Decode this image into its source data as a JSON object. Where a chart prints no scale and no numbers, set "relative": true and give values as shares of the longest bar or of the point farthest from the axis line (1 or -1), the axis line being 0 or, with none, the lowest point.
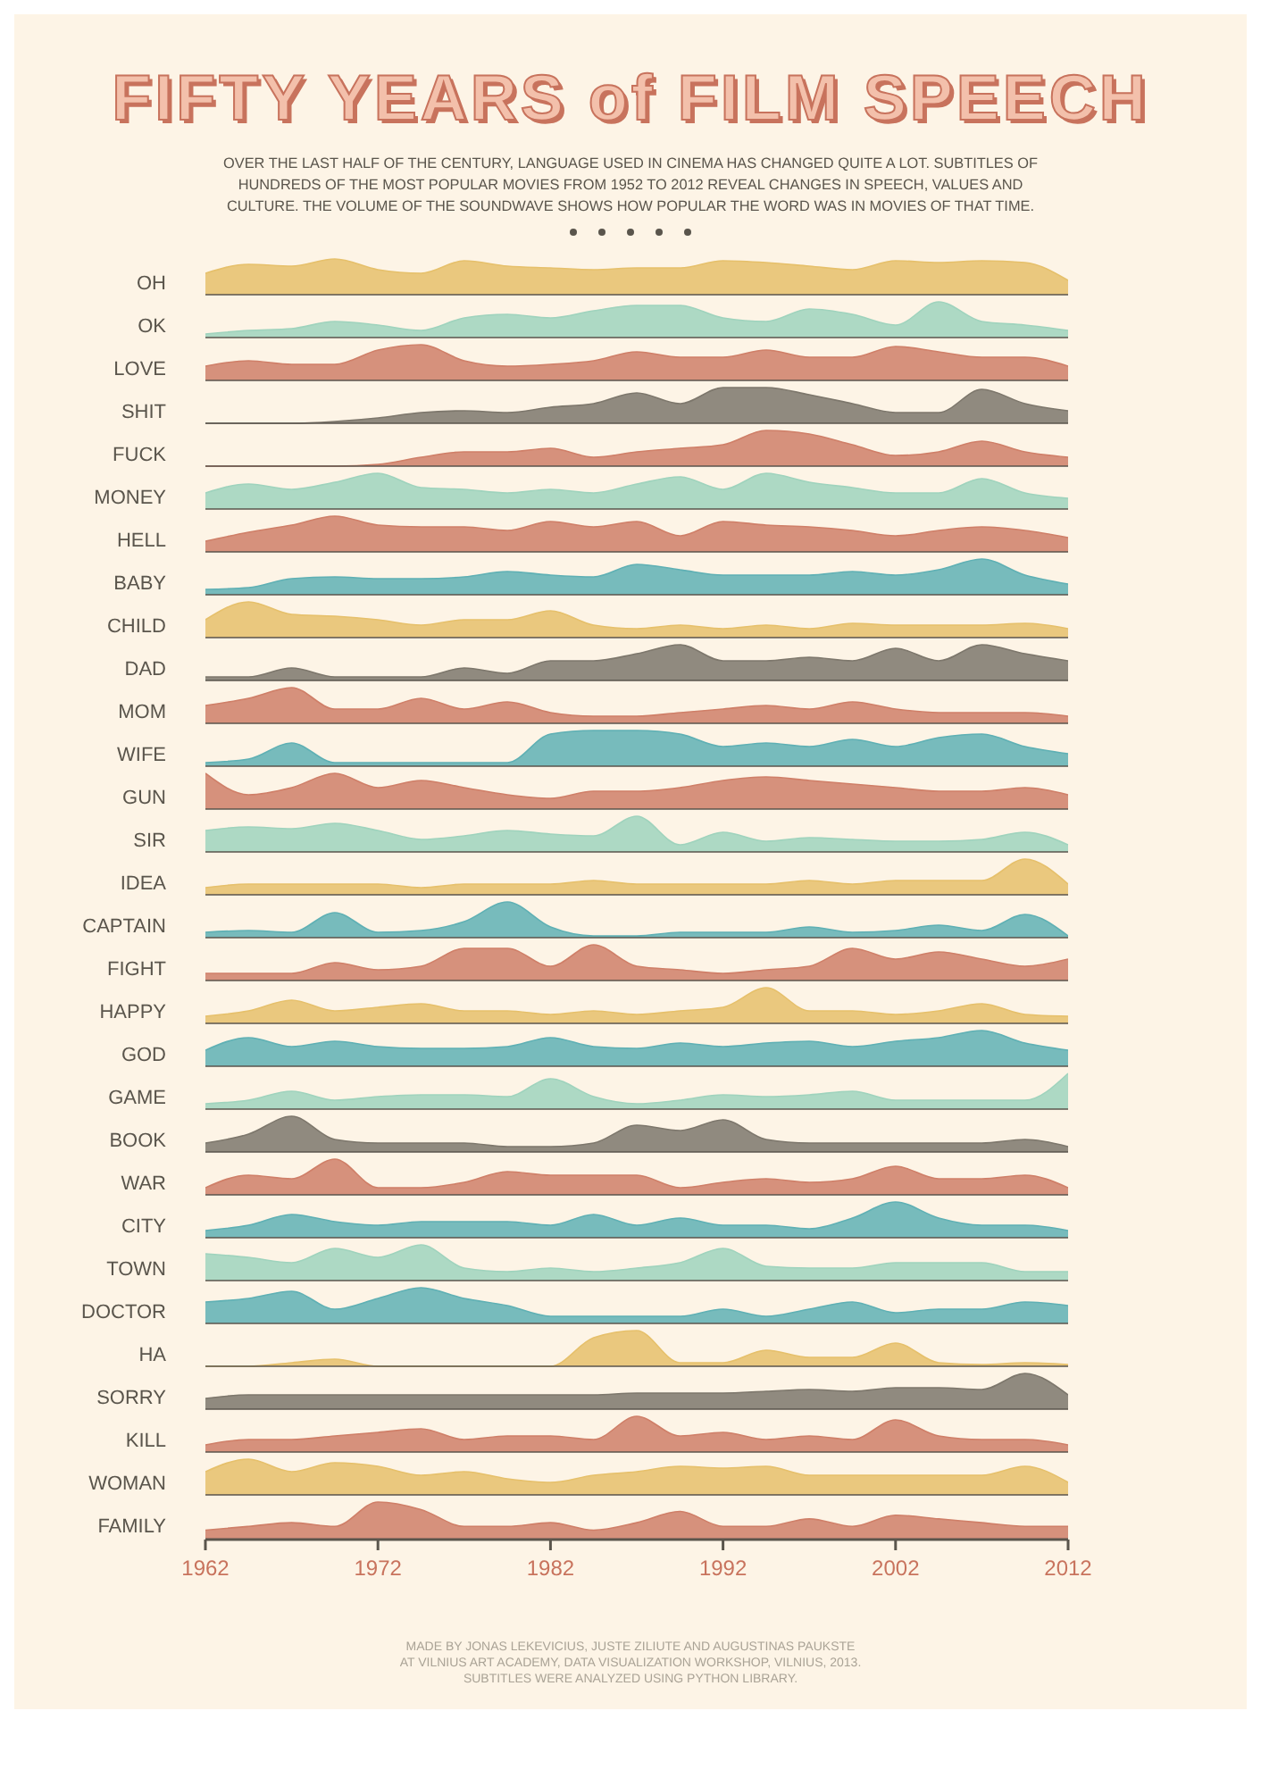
{
  "chart_data": [
    {
      "type": "area",
      "title": "FIFTY YEARS of FILM SPEECH",
      "subtitle": "OVER THE LAST HALF OF THE CENTURY, LANGUAGE USED IN CINEMA HAS CHANGED QUITE A LOT.  SUBTITLES OF HUNDREDS OF THE MOST POPULAR MOVIES FROM 1952 TO 2012 REVEAL CHANGES IN SPEECH, VALUES AND CULTURE. THE VOLUME OF THE SOUNDWAVE SHOWS HOW POPULAR THE WORD WAS IN MOVIES OF THAT TIME.",
      "relative": true,
      "tick_labels": false,
      "xlim": [
        1962,
        2012
      ],
      "x": [
        1962,
        1964.5,
        1967,
        1969.5,
        1972,
        1974.5,
        1977,
        1979.5,
        1982,
        1984.5,
        1987,
        1989.5,
        1992,
        1994.5,
        1997,
        1999.5,
        2002,
        2004.5,
        2007,
        2009.5,
        2012
      ],
      "series": [
        {
          "name": "OH",
          "color": "#e6c06b",
          "values": [
            0.6,
            0.85,
            0.8,
            1,
            0.7,
            0.6,
            0.95,
            0.8,
            0.75,
            0.7,
            0.75,
            0.75,
            0.95,
            0.9,
            0.8,
            0.7,
            0.95,
            0.9,
            0.95,
            0.9,
            0.4
          ]
        }
      ]
    },
    {
      "type": "area",
      "relative": true,
      "tick_labels": false,
      "xlim": [
        1962,
        2012
      ],
      "x": [
        1962,
        1964.5,
        1967,
        1969.5,
        1972,
        1974.5,
        1977,
        1979.5,
        1982,
        1984.5,
        1987,
        1989.5,
        1992,
        1994.5,
        1997,
        1999.5,
        2002,
        2004.5,
        2007,
        2009.5,
        2012
      ],
      "series": [
        {
          "name": "OK",
          "color": "#9fd3bd",
          "values": [
            0.1,
            0.2,
            0.25,
            0.45,
            0.35,
            0.2,
            0.55,
            0.65,
            0.55,
            0.75,
            0.9,
            0.9,
            0.55,
            0.45,
            0.8,
            0.65,
            0.35,
            1,
            0.45,
            0.35,
            0.2
          ]
        }
      ]
    },
    {
      "type": "area",
      "relative": true,
      "tick_labels": false,
      "xlim": [
        1962,
        2012
      ],
      "x": [
        1962,
        1964.5,
        1967,
        1969.5,
        1972,
        1974.5,
        1977,
        1979.5,
        1982,
        1984.5,
        1987,
        1989.5,
        1992,
        1994.5,
        1997,
        1999.5,
        2002,
        2004.5,
        2007,
        2009.5,
        2012
      ],
      "series": [
        {
          "name": "LOVE",
          "color": "#cf7f68",
          "values": [
            0.4,
            0.55,
            0.45,
            0.45,
            0.85,
            1,
            0.55,
            0.4,
            0.45,
            0.55,
            0.8,
            0.65,
            0.65,
            0.85,
            0.65,
            0.65,
            0.95,
            0.8,
            0.65,
            0.65,
            0.4
          ]
        }
      ]
    },
    {
      "type": "area",
      "relative": true,
      "tick_labels": false,
      "xlim": [
        1962,
        2012
      ],
      "x": [
        1962,
        1964.5,
        1967,
        1969.5,
        1972,
        1974.5,
        1977,
        1979.5,
        1982,
        1984.5,
        1987,
        1989.5,
        1992,
        1994.5,
        1997,
        1999.5,
        2002,
        2004.5,
        2007,
        2009.5,
        2012
      ],
      "series": [
        {
          "name": "SHIT",
          "color": "#7d776c",
          "values": [
            0,
            0,
            0,
            0.05,
            0.15,
            0.3,
            0.35,
            0.3,
            0.45,
            0.55,
            0.85,
            0.55,
            1,
            1,
            0.8,
            0.55,
            0.3,
            0.3,
            0.95,
            0.55,
            0.35
          ]
        }
      ]
    },
    {
      "type": "area",
      "relative": true,
      "tick_labels": false,
      "xlim": [
        1962,
        2012
      ],
      "x": [
        1962,
        1964.5,
        1967,
        1969.5,
        1972,
        1974.5,
        1977,
        1979.5,
        1982,
        1984.5,
        1987,
        1989.5,
        1992,
        1994.5,
        1997,
        1999.5,
        2002,
        2004.5,
        2007,
        2009.5,
        2012
      ],
      "series": [
        {
          "name": "FUCK",
          "color": "#cf7f68",
          "values": [
            0,
            0,
            0,
            0,
            0.05,
            0.25,
            0.4,
            0.4,
            0.5,
            0.25,
            0.4,
            0.5,
            0.6,
            1,
            0.9,
            0.6,
            0.3,
            0.4,
            0.7,
            0.4,
            0.25
          ]
        }
      ]
    },
    {
      "type": "area",
      "relative": true,
      "tick_labels": false,
      "xlim": [
        1962,
        2012
      ],
      "x": [
        1962,
        1964.5,
        1967,
        1969.5,
        1972,
        1974.5,
        1977,
        1979.5,
        1982,
        1984.5,
        1987,
        1989.5,
        1992,
        1994.5,
        1997,
        1999.5,
        2002,
        2004.5,
        2007,
        2009.5,
        2012
      ],
      "series": [
        {
          "name": "MONEY",
          "color": "#9fd3bd",
          "values": [
            0.45,
            0.7,
            0.55,
            0.75,
            1,
            0.6,
            0.55,
            0.45,
            0.55,
            0.45,
            0.7,
            0.9,
            0.55,
            1,
            0.75,
            0.6,
            0.45,
            0.45,
            0.85,
            0.45,
            0.3
          ]
        }
      ]
    },
    {
      "type": "area",
      "relative": true,
      "tick_labels": false,
      "xlim": [
        1962,
        2012
      ],
      "x": [
        1962,
        1964.5,
        1967,
        1969.5,
        1972,
        1974.5,
        1977,
        1979.5,
        1982,
        1984.5,
        1987,
        1989.5,
        1992,
        1994.5,
        1997,
        1999.5,
        2002,
        2004.5,
        2007,
        2009.5,
        2012
      ],
      "series": [
        {
          "name": "HELL",
          "color": "#cf7f68",
          "values": [
            0.3,
            0.55,
            0.75,
            1,
            0.75,
            0.7,
            0.7,
            0.6,
            0.85,
            0.7,
            0.85,
            0.45,
            0.85,
            0.75,
            0.7,
            0.6,
            0.45,
            0.6,
            0.7,
            0.6,
            0.4
          ]
        }
      ]
    },
    {
      "type": "area",
      "relative": true,
      "tick_labels": false,
      "xlim": [
        1962,
        2012
      ],
      "x": [
        1962,
        1964.5,
        1967,
        1969.5,
        1972,
        1974.5,
        1977,
        1979.5,
        1982,
        1984.5,
        1987,
        1989.5,
        1992,
        1994.5,
        1997,
        1999.5,
        2002,
        2004.5,
        2007,
        2009.5,
        2012
      ],
      "series": [
        {
          "name": "BABY",
          "color": "#5fb0b4",
          "values": [
            0.15,
            0.2,
            0.45,
            0.5,
            0.45,
            0.45,
            0.5,
            0.65,
            0.55,
            0.5,
            0.85,
            0.7,
            0.55,
            0.55,
            0.55,
            0.65,
            0.55,
            0.7,
            1,
            0.55,
            0.3
          ]
        }
      ]
    },
    {
      "type": "area",
      "relative": true,
      "tick_labels": false,
      "xlim": [
        1962,
        2012
      ],
      "x": [
        1962,
        1964.5,
        1967,
        1969.5,
        1972,
        1974.5,
        1977,
        1979.5,
        1982,
        1984.5,
        1987,
        1989.5,
        1992,
        1994.5,
        1997,
        1999.5,
        2002,
        2004.5,
        2007,
        2009.5,
        2012
      ],
      "series": [
        {
          "name": "CHILD",
          "color": "#e6c06b",
          "values": [
            0.5,
            1,
            0.65,
            0.6,
            0.5,
            0.35,
            0.5,
            0.5,
            0.75,
            0.35,
            0.25,
            0.35,
            0.25,
            0.35,
            0.25,
            0.4,
            0.35,
            0.35,
            0.35,
            0.4,
            0.25
          ]
        }
      ]
    },
    {
      "type": "area",
      "relative": true,
      "tick_labels": false,
      "xlim": [
        1962,
        2012
      ],
      "x": [
        1962,
        1964.5,
        1967,
        1969.5,
        1972,
        1974.5,
        1977,
        1979.5,
        1982,
        1984.5,
        1987,
        1989.5,
        1992,
        1994.5,
        1997,
        1999.5,
        2002,
        2004.5,
        2007,
        2009.5,
        2012
      ],
      "series": [
        {
          "name": "DAD",
          "color": "#7d776c",
          "values": [
            0.1,
            0.1,
            0.35,
            0.1,
            0.1,
            0.1,
            0.35,
            0.2,
            0.55,
            0.55,
            0.75,
            1,
            0.55,
            0.55,
            0.65,
            0.55,
            0.9,
            0.55,
            1,
            0.75,
            0.55
          ]
        }
      ]
    },
    {
      "type": "area",
      "relative": true,
      "tick_labels": false,
      "xlim": [
        1962,
        2012
      ],
      "x": [
        1962,
        1964.5,
        1967,
        1969.5,
        1972,
        1974.5,
        1977,
        1979.5,
        1982,
        1984.5,
        1987,
        1989.5,
        1992,
        1994.5,
        1997,
        1999.5,
        2002,
        2004.5,
        2007,
        2009.5,
        2012
      ],
      "series": [
        {
          "name": "MOM",
          "color": "#cf7f68",
          "values": [
            0.5,
            0.7,
            1,
            0.4,
            0.4,
            0.7,
            0.4,
            0.6,
            0.3,
            0.2,
            0.2,
            0.3,
            0.4,
            0.5,
            0.4,
            0.6,
            0.4,
            0.3,
            0.3,
            0.3,
            0.2
          ]
        }
      ]
    },
    {
      "type": "area",
      "relative": true,
      "tick_labels": false,
      "xlim": [
        1962,
        2012
      ],
      "x": [
        1962,
        1964.5,
        1967,
        1969.5,
        1972,
        1974.5,
        1977,
        1979.5,
        1982,
        1984.5,
        1987,
        1989.5,
        1992,
        1994.5,
        1997,
        1999.5,
        2002,
        2004.5,
        2007,
        2009.5,
        2012
      ],
      "series": [
        {
          "name": "WIFE",
          "color": "#5fb0b4",
          "values": [
            0.1,
            0.2,
            0.65,
            0.1,
            0.1,
            0.1,
            0.1,
            0.1,
            0.9,
            1,
            1,
            0.9,
            0.55,
            0.65,
            0.55,
            0.75,
            0.55,
            0.8,
            0.9,
            0.55,
            0.35
          ]
        }
      ]
    },
    {
      "type": "area",
      "relative": true,
      "tick_labels": false,
      "xlim": [
        1962,
        2012
      ],
      "x": [
        1962,
        1964.5,
        1967,
        1969.5,
        1972,
        1974.5,
        1977,
        1979.5,
        1982,
        1984.5,
        1987,
        1989.5,
        1992,
        1994.5,
        1997,
        1999.5,
        2002,
        2004.5,
        2007,
        2009.5,
        2012
      ],
      "series": [
        {
          "name": "GUN",
          "color": "#cf7f68",
          "values": [
            1,
            0.4,
            0.6,
            1,
            0.6,
            0.8,
            0.6,
            0.4,
            0.3,
            0.5,
            0.5,
            0.6,
            0.8,
            0.9,
            0.8,
            0.7,
            0.6,
            0.5,
            0.5,
            0.6,
            0.4
          ]
        }
      ]
    },
    {
      "type": "area",
      "relative": true,
      "tick_labels": false,
      "xlim": [
        1962,
        2012
      ],
      "x": [
        1962,
        1964.5,
        1967,
        1969.5,
        1972,
        1974.5,
        1977,
        1979.5,
        1982,
        1984.5,
        1987,
        1989.5,
        1992,
        1994.5,
        1997,
        1999.5,
        2002,
        2004.5,
        2007,
        2009.5,
        2012
      ],
      "series": [
        {
          "name": "SIR",
          "color": "#9fd3bd",
          "values": [
            0.6,
            0.7,
            0.65,
            0.8,
            0.6,
            0.35,
            0.45,
            0.6,
            0.5,
            0.45,
            1,
            0.2,
            0.55,
            0.3,
            0.4,
            0.35,
            0.3,
            0.3,
            0.35,
            0.55,
            0.2
          ]
        }
      ]
    },
    {
      "type": "area",
      "relative": true,
      "tick_labels": false,
      "xlim": [
        1962,
        2012
      ],
      "x": [
        1962,
        1964.5,
        1967,
        1969.5,
        1972,
        1974.5,
        1977,
        1979.5,
        1982,
        1984.5,
        1987,
        1989.5,
        1992,
        1994.5,
        1997,
        1999.5,
        2002,
        2004.5,
        2007,
        2009.5,
        2012
      ],
      "series": [
        {
          "name": "IDEA",
          "color": "#e6c06b",
          "values": [
            0.2,
            0.3,
            0.3,
            0.3,
            0.3,
            0.2,
            0.3,
            0.3,
            0.3,
            0.4,
            0.3,
            0.3,
            0.3,
            0.3,
            0.4,
            0.3,
            0.4,
            0.4,
            0.4,
            1,
            0.3
          ]
        }
      ]
    },
    {
      "type": "area",
      "relative": true,
      "tick_labels": false,
      "xlim": [
        1962,
        2012
      ],
      "x": [
        1962,
        1964.5,
        1967,
        1969.5,
        1972,
        1974.5,
        1977,
        1979.5,
        1982,
        1984.5,
        1987,
        1989.5,
        1992,
        1994.5,
        1997,
        1999.5,
        2002,
        2004.5,
        2007,
        2009.5,
        2012
      ],
      "series": [
        {
          "name": "CAPTAIN",
          "color": "#5fb0b4",
          "values": [
            0.15,
            0.2,
            0.15,
            0.7,
            0.15,
            0.2,
            0.45,
            1,
            0.3,
            0.05,
            0.05,
            0.15,
            0.15,
            0.15,
            0.3,
            0.15,
            0.2,
            0.35,
            0.2,
            0.65,
            0.05
          ]
        }
      ]
    },
    {
      "type": "area",
      "relative": true,
      "tick_labels": false,
      "xlim": [
        1962,
        2012
      ],
      "x": [
        1962,
        1964.5,
        1967,
        1969.5,
        1972,
        1974.5,
        1977,
        1979.5,
        1982,
        1984.5,
        1987,
        1989.5,
        1992,
        1994.5,
        1997,
        1999.5,
        2002,
        2004.5,
        2007,
        2009.5,
        2012
      ],
      "series": [
        {
          "name": "FIGHT",
          "color": "#cf7f68",
          "values": [
            0.2,
            0.2,
            0.2,
            0.5,
            0.3,
            0.4,
            0.9,
            0.9,
            0.4,
            1,
            0.4,
            0.3,
            0.2,
            0.3,
            0.4,
            0.9,
            0.6,
            0.8,
            0.6,
            0.4,
            0.6
          ]
        }
      ]
    },
    {
      "type": "area",
      "relative": true,
      "tick_labels": false,
      "xlim": [
        1962,
        2012
      ],
      "x": [
        1962,
        1964.5,
        1967,
        1969.5,
        1972,
        1974.5,
        1977,
        1979.5,
        1982,
        1984.5,
        1987,
        1989.5,
        1992,
        1994.5,
        1997,
        1999.5,
        2002,
        2004.5,
        2007,
        2009.5,
        2012
      ],
      "series": [
        {
          "name": "HAPPY",
          "color": "#e6c06b",
          "values": [
            0.2,
            0.35,
            0.65,
            0.35,
            0.45,
            0.55,
            0.35,
            0.35,
            0.25,
            0.35,
            0.25,
            0.35,
            0.45,
            1,
            0.35,
            0.35,
            0.25,
            0.35,
            0.55,
            0.25,
            0.2
          ]
        }
      ]
    },
    {
      "type": "area",
      "relative": true,
      "tick_labels": false,
      "xlim": [
        1962,
        2012
      ],
      "x": [
        1962,
        1964.5,
        1967,
        1969.5,
        1972,
        1974.5,
        1977,
        1979.5,
        1982,
        1984.5,
        1987,
        1989.5,
        1992,
        1994.5,
        1997,
        1999.5,
        2002,
        2004.5,
        2007,
        2009.5,
        2012
      ],
      "series": [
        {
          "name": "GOD",
          "color": "#5fb0b4",
          "values": [
            0.45,
            0.8,
            0.55,
            0.7,
            0.55,
            0.5,
            0.5,
            0.55,
            0.8,
            0.55,
            0.5,
            0.65,
            0.55,
            0.65,
            0.7,
            0.55,
            0.7,
            0.8,
            1,
            0.65,
            0.45
          ]
        }
      ]
    },
    {
      "type": "area",
      "relative": true,
      "tick_labels": false,
      "xlim": [
        1962,
        2012
      ],
      "x": [
        1962,
        1964.5,
        1967,
        1969.5,
        1972,
        1974.5,
        1977,
        1979.5,
        1982,
        1984.5,
        1987,
        1989.5,
        1992,
        1994.5,
        1997,
        1999.5,
        2002,
        2004.5,
        2007,
        2009.5,
        2012
      ],
      "series": [
        {
          "name": "GAME",
          "color": "#9fd3bd",
          "values": [
            0.15,
            0.25,
            0.5,
            0.25,
            0.35,
            0.4,
            0.4,
            0.35,
            0.85,
            0.35,
            0.15,
            0.25,
            0.4,
            0.35,
            0.4,
            0.5,
            0.25,
            0.25,
            0.25,
            0.25,
            1
          ]
        }
      ]
    },
    {
      "type": "area",
      "relative": true,
      "tick_labels": false,
      "xlim": [
        1962,
        2012
      ],
      "x": [
        1962,
        1964.5,
        1967,
        1969.5,
        1972,
        1974.5,
        1977,
        1979.5,
        1982,
        1984.5,
        1987,
        1989.5,
        1992,
        1994.5,
        1997,
        1999.5,
        2002,
        2004.5,
        2007,
        2009.5,
        2012
      ],
      "series": [
        {
          "name": "BOOK",
          "color": "#7d776c",
          "values": [
            0.25,
            0.5,
            1,
            0.35,
            0.25,
            0.25,
            0.25,
            0.15,
            0.15,
            0.25,
            0.75,
            0.6,
            0.9,
            0.35,
            0.25,
            0.25,
            0.25,
            0.25,
            0.25,
            0.35,
            0.15
          ]
        }
      ]
    },
    {
      "type": "area",
      "relative": true,
      "tick_labels": false,
      "xlim": [
        1962,
        2012
      ],
      "x": [
        1962,
        1964.5,
        1967,
        1969.5,
        1972,
        1974.5,
        1977,
        1979.5,
        1982,
        1984.5,
        1987,
        1989.5,
        1992,
        1994.5,
        1997,
        1999.5,
        2002,
        2004.5,
        2007,
        2009.5,
        2012
      ],
      "series": [
        {
          "name": "WAR",
          "color": "#cf7f68",
          "values": [
            0.2,
            0.55,
            0.45,
            1,
            0.2,
            0.2,
            0.35,
            0.65,
            0.55,
            0.55,
            0.55,
            0.2,
            0.35,
            0.45,
            0.35,
            0.45,
            0.8,
            0.45,
            0.45,
            0.55,
            0.2
          ]
        }
      ]
    },
    {
      "type": "area",
      "relative": true,
      "tick_labels": false,
      "xlim": [
        1962,
        2012
      ],
      "x": [
        1962,
        1964.5,
        1967,
        1969.5,
        1972,
        1974.5,
        1977,
        1979.5,
        1982,
        1984.5,
        1987,
        1989.5,
        1992,
        1994.5,
        1997,
        1999.5,
        2002,
        2004.5,
        2007,
        2009.5,
        2012
      ],
      "series": [
        {
          "name": "CITY",
          "color": "#5fb0b4",
          "values": [
            0.2,
            0.35,
            0.65,
            0.45,
            0.35,
            0.45,
            0.45,
            0.45,
            0.35,
            0.65,
            0.35,
            0.55,
            0.35,
            0.35,
            0.25,
            0.55,
            1,
            0.55,
            0.35,
            0.35,
            0.2
          ]
        }
      ]
    },
    {
      "type": "area",
      "relative": true,
      "tick_labels": false,
      "xlim": [
        1962,
        2012
      ],
      "x": [
        1962,
        1964.5,
        1967,
        1969.5,
        1972,
        1974.5,
        1977,
        1979.5,
        1982,
        1984.5,
        1987,
        1989.5,
        1992,
        1994.5,
        1997,
        1999.5,
        2002,
        2004.5,
        2007,
        2009.5,
        2012
      ],
      "series": [
        {
          "name": "TOWN",
          "color": "#9fd3bd",
          "values": [
            0.75,
            0.65,
            0.5,
            0.9,
            0.65,
            1,
            0.35,
            0.25,
            0.35,
            0.25,
            0.35,
            0.5,
            0.9,
            0.4,
            0.35,
            0.35,
            0.5,
            0.5,
            0.5,
            0.25,
            0.25
          ]
        }
      ]
    },
    {
      "type": "area",
      "relative": true,
      "tick_labels": false,
      "xlim": [
        1962,
        2012
      ],
      "x": [
        1962,
        1964.5,
        1967,
        1969.5,
        1972,
        1974.5,
        1977,
        1979.5,
        1982,
        1984.5,
        1987,
        1989.5,
        1992,
        1994.5,
        1997,
        1999.5,
        2002,
        2004.5,
        2007,
        2009.5,
        2012
      ],
      "series": [
        {
          "name": "DOCTOR",
          "color": "#5fb0b4",
          "values": [
            0.6,
            0.7,
            0.9,
            0.4,
            0.7,
            1,
            0.7,
            0.5,
            0.2,
            0.2,
            0.2,
            0.2,
            0.4,
            0.2,
            0.4,
            0.6,
            0.3,
            0.4,
            0.4,
            0.6,
            0.5
          ]
        }
      ]
    },
    {
      "type": "area",
      "relative": true,
      "tick_labels": false,
      "xlim": [
        1962,
        2012
      ],
      "x": [
        1962,
        1964.5,
        1967,
        1969.5,
        1972,
        1974.5,
        1977,
        1979.5,
        1982,
        1984.5,
        1987,
        1989.5,
        1992,
        1994.5,
        1997,
        1999.5,
        2002,
        2004.5,
        2007,
        2009.5,
        2012
      ],
      "series": [
        {
          "name": "HA",
          "color": "#e6c06b",
          "values": [
            0,
            0,
            0.1,
            0.2,
            0,
            0,
            0,
            0,
            0,
            0.8,
            1,
            0.1,
            0.1,
            0.45,
            0.25,
            0.25,
            0.65,
            0.1,
            0.05,
            0.1,
            0.05
          ]
        }
      ]
    },
    {
      "type": "area",
      "relative": true,
      "tick_labels": false,
      "xlim": [
        1962,
        2012
      ],
      "x": [
        1962,
        1964.5,
        1967,
        1969.5,
        1972,
        1974.5,
        1977,
        1979.5,
        1982,
        1984.5,
        1987,
        1989.5,
        1992,
        1994.5,
        1997,
        1999.5,
        2002,
        2004.5,
        2007,
        2009.5,
        2012
      ],
      "series": [
        {
          "name": "SORRY",
          "color": "#7d776c",
          "values": [
            0.3,
            0.4,
            0.4,
            0.4,
            0.4,
            0.4,
            0.4,
            0.4,
            0.4,
            0.4,
            0.45,
            0.45,
            0.45,
            0.5,
            0.55,
            0.5,
            0.6,
            0.6,
            0.55,
            1,
            0.4
          ]
        }
      ]
    },
    {
      "type": "area",
      "relative": true,
      "tick_labels": false,
      "xlim": [
        1962,
        2012
      ],
      "x": [
        1962,
        1964.5,
        1967,
        1969.5,
        1972,
        1974.5,
        1977,
        1979.5,
        1982,
        1984.5,
        1987,
        1989.5,
        1992,
        1994.5,
        1997,
        1999.5,
        2002,
        2004.5,
        2007,
        2009.5,
        2012
      ],
      "series": [
        {
          "name": "KILL",
          "color": "#cf7f68",
          "values": [
            0.2,
            0.35,
            0.35,
            0.45,
            0.55,
            0.65,
            0.35,
            0.45,
            0.45,
            0.35,
            1,
            0.45,
            0.55,
            0.35,
            0.45,
            0.35,
            0.9,
            0.45,
            0.35,
            0.35,
            0.2
          ]
        }
      ]
    },
    {
      "type": "area",
      "relative": true,
      "tick_labels": false,
      "xlim": [
        1962,
        2012
      ],
      "x": [
        1962,
        1964.5,
        1967,
        1969.5,
        1972,
        1974.5,
        1977,
        1979.5,
        1982,
        1984.5,
        1987,
        1989.5,
        1992,
        1994.5,
        1997,
        1999.5,
        2002,
        2004.5,
        2007,
        2009.5,
        2012
      ],
      "series": [
        {
          "name": "WOMAN",
          "color": "#e6c06b",
          "values": [
            0.65,
            1,
            0.65,
            0.9,
            0.8,
            0.55,
            0.65,
            0.45,
            0.35,
            0.55,
            0.65,
            0.8,
            0.75,
            0.8,
            0.55,
            0.55,
            0.55,
            0.55,
            0.55,
            0.8,
            0.35
          ]
        }
      ]
    },
    {
      "type": "area",
      "relative": true,
      "tick_labels": "x",
      "xlim": [
        1962,
        2012
      ],
      "xticks": [
        1962,
        1972,
        1982,
        1992,
        2002,
        2012
      ],
      "x": [
        1962,
        1964.5,
        1967,
        1969.5,
        1972,
        1974.5,
        1977,
        1979.5,
        1982,
        1984.5,
        1987,
        1989.5,
        1992,
        1994.5,
        1997,
        1999.5,
        2002,
        2004.5,
        2007,
        2009.5,
        2012
      ],
      "series": [
        {
          "name": "FAMILY",
          "color": "#cf7f68",
          "values": [
            0.25,
            0.35,
            0.45,
            0.35,
            1,
            0.8,
            0.35,
            0.35,
            0.45,
            0.25,
            0.45,
            0.75,
            0.35,
            0.35,
            0.55,
            0.35,
            0.65,
            0.55,
            0.45,
            0.35,
            0.35
          ]
        }
      ],
      "annotations": [
        "MADE BY JONAS LEKEVICIUS, JUSTE ZILIUTE AND AUGUSTINAS PAUKSTE",
        "AT VILNIUS ART ACADEMY, DATA VISUALIZATION WORKSHOP, VILNIUS, 2013.",
        "SUBTITLES WERE ANALYZED USING PYTHON LIBRARY."
      ]
    }
  ]
}
